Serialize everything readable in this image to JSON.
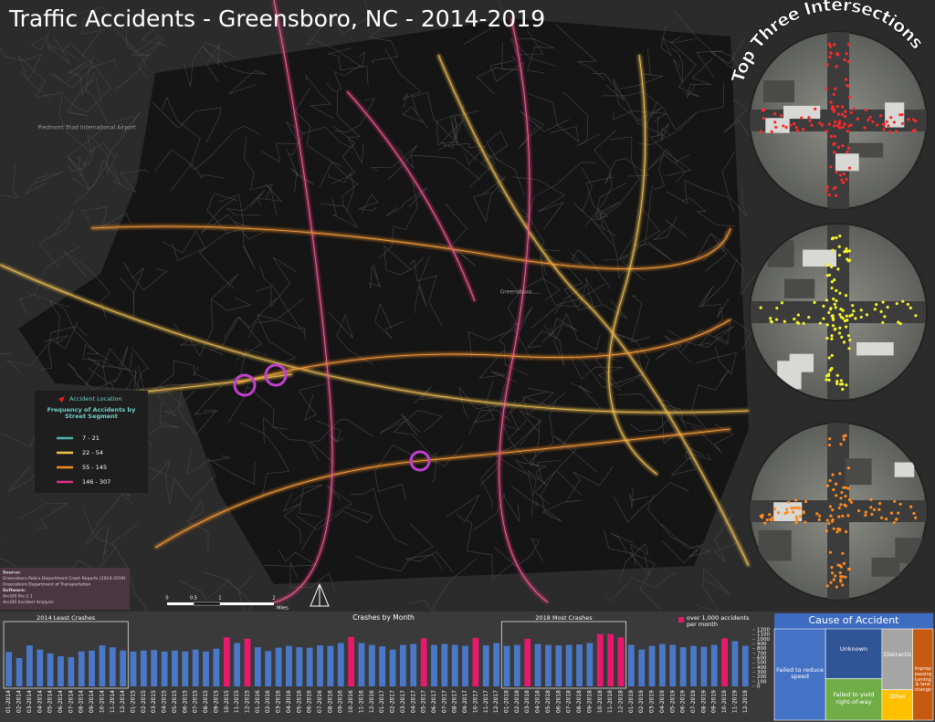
{
  "title": "Traffic Accidents - Greensboro, NC - 2014-2019",
  "inset_title": "Top Three Intersections",
  "legend": {
    "marker": "Accident Location",
    "heading": "Frequency of Accidents by Street Segment",
    "classes": [
      {
        "label": "7 - 21",
        "color": "#4fb3a9"
      },
      {
        "label": "22 - 54",
        "color": "#f2c14e"
      },
      {
        "label": "55 - 145",
        "color": "#f08a24"
      },
      {
        "label": "146 - 307",
        "color": "#e0308a"
      }
    ]
  },
  "map_labels": [
    "Piedmont Triad International Airport",
    "Greensboro"
  ],
  "scale_bar": {
    "ticks": [
      "0",
      "0.5",
      "1",
      "2"
    ],
    "unit": "Miles"
  },
  "credits": [
    "Source:",
    "Greensboro Police Department Crash Reports (2014-2019)",
    "Greensboro Department of Transportation",
    "Software:",
    "ArcGIS Pro 2.1",
    "ArcGIS Incident Analysis"
  ],
  "chart_data": [
    {
      "type": "bar",
      "title": "Crashes by Month",
      "categories": [
        "01-2014",
        "02-2014",
        "03-2014",
        "04-2014",
        "05-2014",
        "06-2014",
        "07-2014",
        "08-2014",
        "09-2014",
        "10-2014",
        "11-2014",
        "12-2014",
        "01-2015",
        "02-2015",
        "03-2015",
        "04-2015",
        "05-2015",
        "06-2015",
        "07-2015",
        "08-2015",
        "09-2015",
        "10-2015",
        "11-2015",
        "12-2015",
        "01-2016",
        "02-2016",
        "03-2016",
        "04-2016",
        "05-2016",
        "06-2016",
        "07-2016",
        "08-2016",
        "09-2016",
        "10-2016",
        "11-2016",
        "12-2016",
        "01-2017",
        "02-2017",
        "03-2017",
        "04-2017",
        "05-2017",
        "06-2017",
        "07-2017",
        "08-2017",
        "09-2017",
        "10-2017",
        "11-2017",
        "12-2017",
        "01-2018",
        "02-2018",
        "03-2018",
        "04-2018",
        "05-2018",
        "06-2018",
        "07-2018",
        "08-2018",
        "09-2018",
        "10-2018",
        "11-2018",
        "12-2018",
        "01-2019",
        "02-2019",
        "03-2019",
        "04-2019",
        "05-2019",
        "06-2019",
        "07-2019",
        "08-2019",
        "09-2019",
        "10-2019",
        "11-2019",
        "12-2019"
      ],
      "values": [
        730,
        600,
        870,
        780,
        700,
        640,
        620,
        740,
        760,
        870,
        830,
        760,
        740,
        760,
        770,
        740,
        760,
        740,
        780,
        740,
        800,
        1040,
        920,
        1010,
        830,
        750,
        820,
        860,
        830,
        820,
        870,
        860,
        920,
        1050,
        920,
        880,
        850,
        780,
        880,
        900,
        1020,
        880,
        900,
        880,
        860,
        1030,
        870,
        920,
        860,
        880,
        1010,
        900,
        880,
        870,
        880,
        890,
        920,
        1110,
        1110,
        1040,
        880,
        780,
        860,
        900,
        880,
        830,
        860,
        840,
        880,
        1020,
        960,
        860
      ],
      "color": "#4a78c8",
      "highlight": {
        "value": 1000,
        "label": "over 1,000 accidents per month",
        "color": "#e8186d"
      },
      "annotations": [
        {
          "label": "2014 Least Crashes",
          "from": "01-2014",
          "to": "12-2014"
        },
        {
          "label": "2018 Most Crashes",
          "from": "01-2018",
          "to": "12-2018"
        }
      ],
      "ylim": [
        0,
        1200
      ],
      "yticks": [
        0,
        100,
        200,
        300,
        400,
        500,
        600,
        700,
        800,
        900,
        1000,
        1100,
        1200
      ]
    },
    {
      "type": "treemap",
      "title": "Cause of Accident",
      "items": [
        {
          "name": "Failed to reduce speed",
          "value": 20,
          "color": "#4472c4"
        },
        {
          "name": "Unknown",
          "value": 12,
          "color": "#2f5597"
        },
        {
          "name": "Failed to yield right-of-way",
          "value": 10,
          "color": "#70ad47"
        },
        {
          "name": "Distraction",
          "value": 8,
          "color": "#a5a5a5"
        },
        {
          "name": "Other",
          "value": 4,
          "color": "#ffc000"
        },
        {
          "name": "Improper passing, turning & lane changing",
          "value": 8,
          "color": "#c55a11"
        }
      ]
    }
  ]
}
